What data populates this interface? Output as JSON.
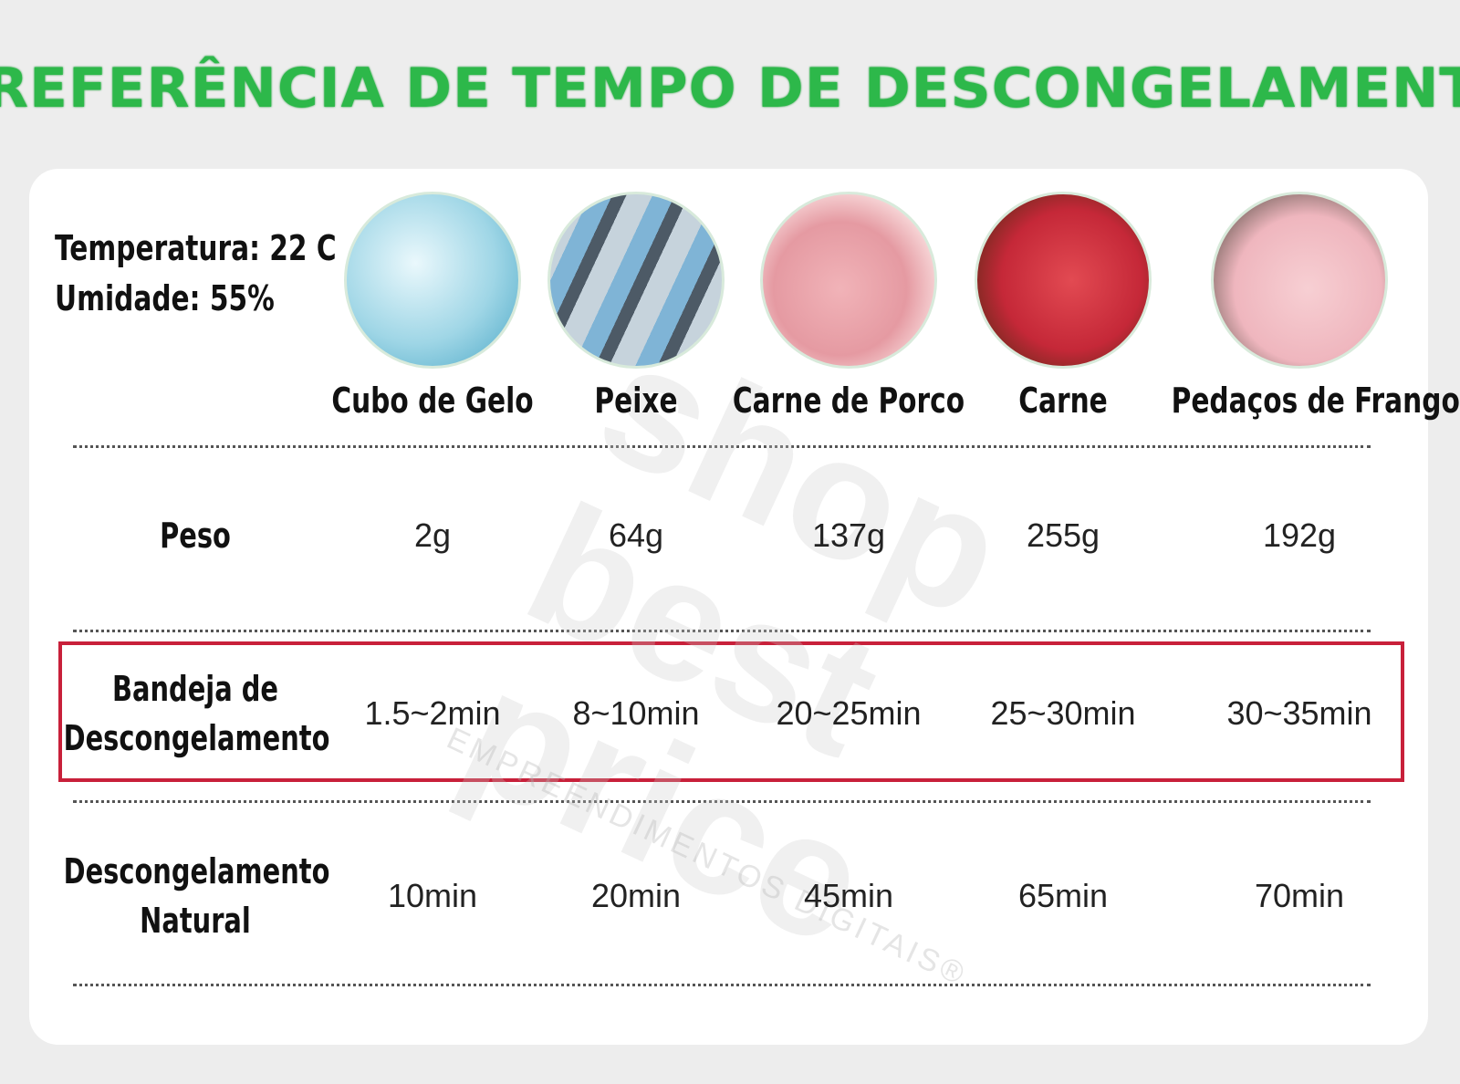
{
  "header": {
    "title": "REFERÊNCIA DE TEMPO DE DESCONGELAMENTO"
  },
  "conditions": [
    "Temperatura: 22 C",
    "Umidade: 55%"
  ],
  "table": {
    "columns": [
      "Cubo de Gelo",
      "Peixe",
      "Carne de Porco",
      "Carne",
      "Pedaços de Frango"
    ],
    "rows": [
      {
        "label": "Peso",
        "values": [
          "2g",
          "64g",
          "137g",
          "255g",
          "192g"
        ]
      },
      {
        "label": "Bandeja de Descongelamento",
        "values": [
          "1.5~2min",
          "8~10min",
          "20~25min",
          "25~30min",
          "30~35min"
        ]
      },
      {
        "label": "Descongelamento Natural",
        "values": [
          "10min",
          "20min",
          "45min",
          "65min",
          "70min"
        ]
      }
    ]
  },
  "watermark": [
    "shop",
    "best",
    "price",
    "EMPREENDIMENTOS DIGITAIS®"
  ]
}
